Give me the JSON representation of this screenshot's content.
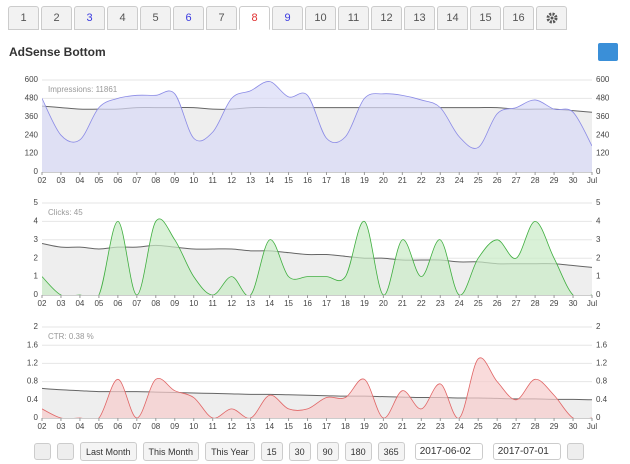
{
  "tabs": [
    {
      "label": "1",
      "color": "#555"
    },
    {
      "label": "2",
      "color": "#555"
    },
    {
      "label": "3",
      "color": "#3a3ae0"
    },
    {
      "label": "4",
      "color": "#555"
    },
    {
      "label": "5",
      "color": "#555"
    },
    {
      "label": "6",
      "color": "#3a3ae0"
    },
    {
      "label": "7",
      "color": "#555"
    },
    {
      "label": "8",
      "color": "#e03030",
      "active": true
    },
    {
      "label": "9",
      "color": "#3a3ae0"
    },
    {
      "label": "10",
      "color": "#555"
    },
    {
      "label": "11",
      "color": "#555"
    },
    {
      "label": "12",
      "color": "#555"
    },
    {
      "label": "13",
      "color": "#555"
    },
    {
      "label": "14",
      "color": "#555"
    },
    {
      "label": "15",
      "color": "#555"
    },
    {
      "label": "16",
      "color": "#555"
    }
  ],
  "header": {
    "title": "AdSense Bottom"
  },
  "chart_data": [
    {
      "type": "area",
      "label": "Impressions: 11861",
      "categories": [
        "02",
        "03",
        "04",
        "05",
        "06",
        "07",
        "08",
        "09",
        "10",
        "11",
        "12",
        "13",
        "14",
        "15",
        "16",
        "17",
        "18",
        "19",
        "20",
        "21",
        "22",
        "23",
        "24",
        "25",
        "26",
        "27",
        "28",
        "29",
        "30",
        "Jul"
      ],
      "series": [
        {
          "color": "#8b8be6",
          "fill": "#d9daf6",
          "values": [
            480,
            240,
            210,
            420,
            480,
            500,
            500,
            510,
            220,
            260,
            480,
            530,
            590,
            490,
            500,
            220,
            230,
            480,
            510,
            500,
            470,
            420,
            230,
            160,
            380,
            420,
            470,
            410,
            390,
            170
          ]
        },
        {
          "color": "#666",
          "fill": "#eeeeee",
          "values": [
            430,
            420,
            410,
            410,
            410,
            420,
            420,
            420,
            420,
            410,
            410,
            420,
            420,
            420,
            420,
            420,
            420,
            420,
            420,
            420,
            420,
            420,
            420,
            420,
            420,
            410,
            410,
            410,
            400,
            390
          ]
        }
      ],
      "ylim": [
        0,
        600
      ],
      "yticks": [
        0,
        120,
        240,
        360,
        480,
        600
      ],
      "grid": true
    },
    {
      "type": "area",
      "label": "Clicks: 45",
      "categories": [
        "02",
        "03",
        "04",
        "05",
        "06",
        "07",
        "08",
        "09",
        "10",
        "11",
        "12",
        "13",
        "14",
        "15",
        "16",
        "17",
        "18",
        "19",
        "20",
        "21",
        "22",
        "23",
        "24",
        "25",
        "26",
        "27",
        "28",
        "29",
        "30",
        "Jul"
      ],
      "series": [
        {
          "color": "#3fae3f",
          "fill": "#c9ebc6",
          "values": [
            1,
            0,
            0,
            0,
            4,
            0,
            4,
            3,
            1,
            0,
            1,
            0,
            3,
            1,
            1,
            1,
            1,
            4,
            0,
            3,
            1,
            3,
            0,
            2,
            3,
            2,
            4,
            2,
            0,
            0
          ]
        },
        {
          "color": "#666",
          "fill": "#eeeeee",
          "values": [
            2.8,
            2.6,
            2.6,
            2.5,
            2.6,
            2.6,
            2.7,
            2.6,
            2.5,
            2.5,
            2.5,
            2.4,
            2.4,
            2.3,
            2.2,
            2.2,
            2.1,
            2,
            2,
            1.9,
            1.9,
            1.9,
            1.8,
            1.8,
            1.7,
            1.7,
            1.7,
            1.7,
            1.6,
            1.5
          ]
        }
      ],
      "ylim": [
        0,
        5
      ],
      "yticks": [
        0,
        1,
        2,
        3,
        4,
        5
      ],
      "grid": true
    },
    {
      "type": "area",
      "label": "CTR: 0.38 %",
      "categories": [
        "02",
        "03",
        "04",
        "05",
        "06",
        "07",
        "08",
        "09",
        "10",
        "11",
        "12",
        "13",
        "14",
        "15",
        "16",
        "17",
        "18",
        "19",
        "20",
        "21",
        "22",
        "23",
        "24",
        "25",
        "26",
        "27",
        "28",
        "29",
        "30",
        "Jul"
      ],
      "series": [
        {
          "color": "#e06565",
          "fill": "#f7cccc",
          "values": [
            0.2,
            0,
            0,
            0,
            0.85,
            0,
            0.85,
            0.6,
            0.45,
            0,
            0.2,
            0,
            0.5,
            0.2,
            0.2,
            0.45,
            0.45,
            0.85,
            0,
            0.6,
            0.2,
            0.75,
            0,
            1.3,
            0.8,
            0.4,
            0.85,
            0.5,
            0,
            0
          ]
        },
        {
          "color": "#666",
          "fill": "#eeeeee",
          "values": [
            0.65,
            0.62,
            0.6,
            0.58,
            0.58,
            0.58,
            0.57,
            0.56,
            0.55,
            0.54,
            0.53,
            0.52,
            0.52,
            0.51,
            0.5,
            0.49,
            0.48,
            0.48,
            0.47,
            0.46,
            0.45,
            0.45,
            0.44,
            0.44,
            0.43,
            0.42,
            0.42,
            0.41,
            0.41,
            0.4
          ]
        }
      ],
      "ylim": [
        0,
        2
      ],
      "yticks": [
        0,
        {
          "value": 0.4,
          "label": "0.4"
        },
        {
          "value": 0.8,
          "label": "0.8"
        },
        {
          "value": 1.2,
          "label": "1.2"
        },
        {
          "value": 1.6,
          "label": "1.6"
        },
        2
      ],
      "grid": true
    }
  ],
  "footer": {
    "buttons": [
      "Last Month",
      "This Month",
      "This Year",
      "15",
      "30",
      "90",
      "180",
      "365"
    ],
    "dates": [
      "2017-06-02",
      "2017-07-01"
    ]
  }
}
